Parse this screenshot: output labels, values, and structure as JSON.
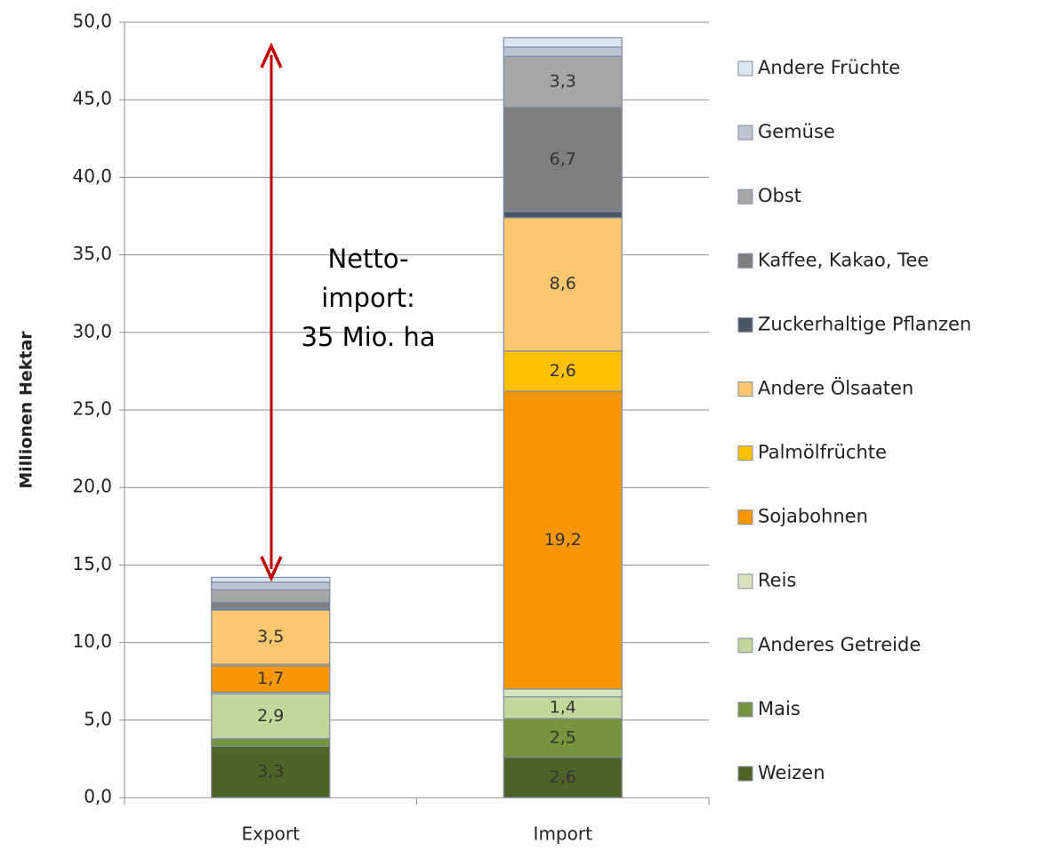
{
  "chart_data": {
    "type": "stacked_bar",
    "y_label": "Millionen Hektar",
    "categories": [
      "Export",
      "Import"
    ],
    "ylim": [
      0,
      50
    ],
    "yticks": [
      {
        "value": 0,
        "label": "0,0"
      },
      {
        "value": 5,
        "label": "5,0"
      },
      {
        "value": 10,
        "label": "10,0"
      },
      {
        "value": 15,
        "label": "15,0"
      },
      {
        "value": 20,
        "label": "20,0"
      },
      {
        "value": 25,
        "label": "25,0"
      },
      {
        "value": 30,
        "label": "30,0"
      },
      {
        "value": 35,
        "label": "35,0"
      },
      {
        "value": 40,
        "label": "40,0"
      },
      {
        "value": 45,
        "label": "45,0"
      },
      {
        "value": 50,
        "label": "50,0"
      }
    ],
    "grid": true,
    "legend": "right",
    "annotation": [
      "Netto-",
      "import:",
      "35 Mio. ha"
    ],
    "series": [
      {
        "name": "Weizen",
        "color": "#4f6228",
        "values": [
          3.3,
          2.6
        ],
        "value_labels": [
          "3,3",
          "2,6"
        ]
      },
      {
        "name": "Mais",
        "color": "#77933c",
        "values": [
          0.5,
          2.5
        ],
        "value_labels": [
          null,
          "2,5"
        ]
      },
      {
        "name": "Anderes Getreide",
        "color": "#c3d69b",
        "values": [
          2.9,
          1.4
        ],
        "value_labels": [
          "2,9",
          "1,4"
        ]
      },
      {
        "name": "Reis",
        "color": "#d7e4bd",
        "values": [
          0.1,
          0.5
        ],
        "value_labels": [
          null,
          null
        ]
      },
      {
        "name": "Sojabohnen",
        "color": "#f79600",
        "values": [
          1.7,
          19.2
        ],
        "value_labels": [
          "1,7",
          "19,2"
        ]
      },
      {
        "name": "Palmölfrüchte",
        "color": "#ffc000",
        "values": [
          0.1,
          2.6
        ],
        "value_labels": [
          null,
          "2,6"
        ]
      },
      {
        "name": "Andere Ölsaaten",
        "color": "#fac66e",
        "values": [
          3.5,
          8.6
        ],
        "value_labels": [
          "3,5",
          "8,6"
        ]
      },
      {
        "name": "Zuckerhaltige Pflanzen",
        "color": "#4b5563",
        "values": [
          0.1,
          0.4
        ],
        "value_labels": [
          null,
          null
        ]
      },
      {
        "name": "Kaffee, Kakao, Tee",
        "color": "#7f7f7f",
        "values": [
          0.4,
          6.7
        ],
        "value_labels": [
          null,
          "6,7"
        ]
      },
      {
        "name": "Obst",
        "color": "#a6a6a6",
        "values": [
          0.8,
          3.3
        ],
        "value_labels": [
          null,
          "3,3"
        ]
      },
      {
        "name": "Gemüse",
        "color": "#bfc5d0",
        "values": [
          0.5,
          0.6
        ],
        "value_labels": [
          null,
          null
        ]
      },
      {
        "name": "Andere Früchte",
        "color": "#dce6f2",
        "values": [
          0.3,
          0.6
        ],
        "value_labels": [
          null,
          null
        ]
      }
    ]
  }
}
